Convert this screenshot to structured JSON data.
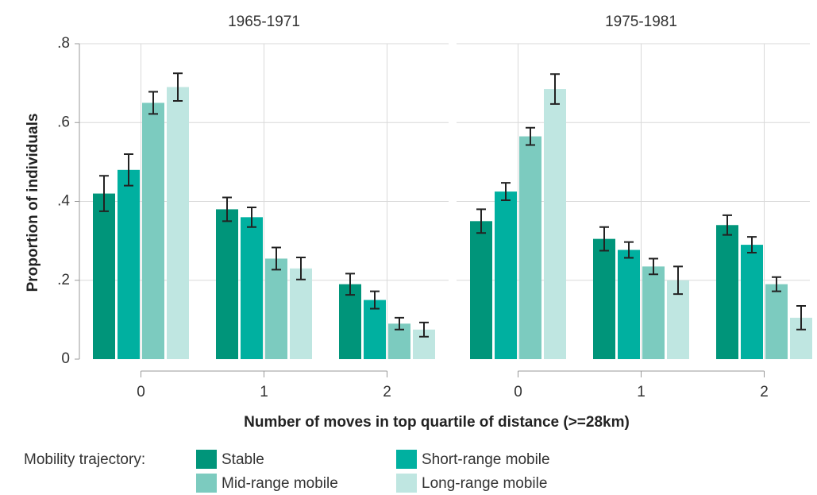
{
  "chart_data": [
    {
      "type": "bar",
      "title": "1965-1971",
      "y_label": "Proportion of individuals",
      "x_label": "Number of moves in top quartile of distance (>=28km)",
      "legend_title": "Mobility trajectory:",
      "categories": [
        "0",
        "1",
        "2"
      ],
      "series": [
        {
          "name": "Stable",
          "color": "#00957a",
          "values": [
            0.42,
            0.38,
            0.19
          ],
          "errors": [
            0.045,
            0.03,
            0.027
          ]
        },
        {
          "name": "Short-range mobile",
          "color": "#00b0a0",
          "values": [
            0.48,
            0.36,
            0.15
          ],
          "errors": [
            0.04,
            0.025,
            0.022
          ]
        },
        {
          "name": "Mid-range mobile",
          "color": "#7ccbbf",
          "values": [
            0.65,
            0.255,
            0.09
          ],
          "errors": [
            0.028,
            0.028,
            0.015
          ]
        },
        {
          "name": "Long-range mobile",
          "color": "#bfe6e1",
          "values": [
            0.69,
            0.23,
            0.075
          ],
          "errors": [
            0.035,
            0.028,
            0.018
          ]
        }
      ],
      "ylim": [
        0,
        0.8
      ],
      "yticks": [
        0,
        {
          "value": 0.2,
          "label": ".2"
        },
        {
          "value": 0.4,
          "label": ".4"
        },
        {
          "value": 0.6,
          "label": ".6"
        },
        {
          "value": 0.8,
          "label": ".8"
        }
      ],
      "grid": true
    },
    {
      "type": "bar",
      "title": "1975-1981",
      "categories": [
        "0",
        "1",
        "2"
      ],
      "series": [
        {
          "name": "Stable",
          "color": "#00957a",
          "values": [
            0.35,
            0.305,
            0.34
          ],
          "errors": [
            0.03,
            0.03,
            0.025
          ]
        },
        {
          "name": "Short-range mobile",
          "color": "#00b0a0",
          "values": [
            0.425,
            0.277,
            0.29
          ],
          "errors": [
            0.022,
            0.02,
            0.02
          ]
        },
        {
          "name": "Mid-range mobile",
          "color": "#7ccbbf",
          "values": [
            0.565,
            0.235,
            0.19
          ],
          "errors": [
            0.022,
            0.02,
            0.018
          ]
        },
        {
          "name": "Long-range mobile",
          "color": "#bfe6e1",
          "values": [
            0.685,
            0.2,
            0.105
          ],
          "errors": [
            0.038,
            0.035,
            0.03
          ]
        }
      ],
      "ylim": [
        0,
        0.8
      ],
      "yticks": [
        0,
        {
          "value": 0.2,
          "label": ".2"
        },
        {
          "value": 0.4,
          "label": ".4"
        },
        {
          "value": 0.6,
          "label": ".6"
        },
        {
          "value": 0.8,
          "label": ".8"
        }
      ],
      "grid": true
    }
  ]
}
